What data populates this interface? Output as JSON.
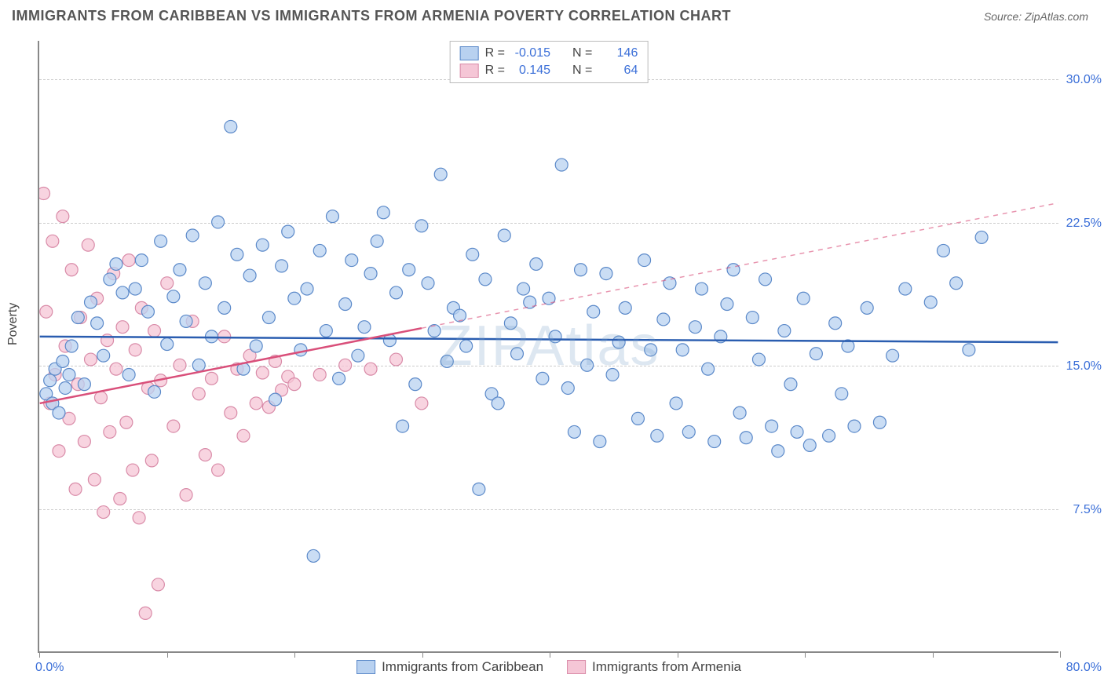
{
  "header": {
    "title": "IMMIGRANTS FROM CARIBBEAN VS IMMIGRANTS FROM ARMENIA POVERTY CORRELATION CHART",
    "source": "Source: ZipAtlas.com"
  },
  "chart": {
    "type": "scatter",
    "ylabel": "Poverty",
    "watermark": "ZIPAtlas",
    "xlim": [
      0,
      80
    ],
    "ylim": [
      0,
      32
    ],
    "x_tick_positions": [
      0,
      10,
      20,
      30,
      40,
      50,
      60,
      70,
      80
    ],
    "y_gridlines": [
      7.5,
      15.0,
      22.5,
      30.0
    ],
    "y_tick_labels": [
      "7.5%",
      "15.0%",
      "22.5%",
      "30.0%"
    ],
    "x_min_label": "0.0%",
    "x_max_label": "80.0%",
    "background_color": "#ffffff",
    "grid_color": "#cccccc",
    "axis_color": "#888888",
    "ytick_label_color": "#3b6fd8",
    "series": [
      {
        "name": "Immigrants from Caribbean",
        "marker_fill": "#b8d1f0",
        "marker_stroke": "#5b89c9",
        "marker_radius": 8,
        "line_color": "#2a5db0",
        "line_width": 2.5,
        "r_value": "-0.015",
        "n_value": "146",
        "trend": {
          "x1": 0,
          "y1": 16.5,
          "x2": 80,
          "y2": 16.2,
          "solid_until_x": 80
        },
        "points": [
          [
            0.5,
            13.5
          ],
          [
            0.8,
            14.2
          ],
          [
            1.0,
            13.0
          ],
          [
            1.2,
            14.8
          ],
          [
            1.5,
            12.5
          ],
          [
            1.8,
            15.2
          ],
          [
            2.0,
            13.8
          ],
          [
            2.3,
            14.5
          ],
          [
            2.5,
            16.0
          ],
          [
            3.0,
            17.5
          ],
          [
            3.5,
            14.0
          ],
          [
            4.0,
            18.3
          ],
          [
            4.5,
            17.2
          ],
          [
            5.0,
            15.5
          ],
          [
            5.5,
            19.5
          ],
          [
            6.0,
            20.3
          ],
          [
            6.5,
            18.8
          ],
          [
            7.0,
            14.5
          ],
          [
            7.5,
            19.0
          ],
          [
            8.0,
            20.5
          ],
          [
            8.5,
            17.8
          ],
          [
            9.0,
            13.6
          ],
          [
            9.5,
            21.5
          ],
          [
            10.0,
            16.1
          ],
          [
            10.5,
            18.6
          ],
          [
            11.0,
            20.0
          ],
          [
            11.5,
            17.3
          ],
          [
            12.0,
            21.8
          ],
          [
            12.5,
            15.0
          ],
          [
            13.0,
            19.3
          ],
          [
            13.5,
            16.5
          ],
          [
            14.0,
            22.5
          ],
          [
            14.5,
            18.0
          ],
          [
            15.0,
            27.5
          ],
          [
            15.5,
            20.8
          ],
          [
            16.0,
            14.8
          ],
          [
            16.5,
            19.7
          ],
          [
            17.0,
            16.0
          ],
          [
            17.5,
            21.3
          ],
          [
            18.0,
            17.5
          ],
          [
            18.5,
            13.2
          ],
          [
            19.0,
            20.2
          ],
          [
            19.5,
            22.0
          ],
          [
            20.0,
            18.5
          ],
          [
            20.5,
            15.8
          ],
          [
            21.0,
            19.0
          ],
          [
            21.5,
            5.0
          ],
          [
            22.0,
            21.0
          ],
          [
            22.5,
            16.8
          ],
          [
            23.0,
            22.8
          ],
          [
            23.5,
            14.3
          ],
          [
            24.0,
            18.2
          ],
          [
            24.5,
            20.5
          ],
          [
            25.0,
            15.5
          ],
          [
            25.5,
            17.0
          ],
          [
            26.0,
            19.8
          ],
          [
            26.5,
            21.5
          ],
          [
            27.0,
            23.0
          ],
          [
            27.5,
            16.3
          ],
          [
            28.0,
            18.8
          ],
          [
            28.5,
            11.8
          ],
          [
            29.0,
            20.0
          ],
          [
            29.5,
            14.0
          ],
          [
            30.0,
            22.3
          ],
          [
            30.5,
            19.3
          ],
          [
            31.0,
            16.8
          ],
          [
            31.5,
            25.0
          ],
          [
            32.0,
            15.2
          ],
          [
            32.5,
            18.0
          ],
          [
            33.0,
            17.6
          ],
          [
            33.5,
            16.0
          ],
          [
            34.0,
            20.8
          ],
          [
            34.5,
            8.5
          ],
          [
            35.0,
            19.5
          ],
          [
            35.5,
            13.5
          ],
          [
            36.0,
            13.0
          ],
          [
            36.5,
            21.8
          ],
          [
            37.0,
            17.2
          ],
          [
            37.5,
            15.6
          ],
          [
            38.0,
            19.0
          ],
          [
            38.5,
            18.3
          ],
          [
            39.0,
            20.3
          ],
          [
            39.5,
            14.3
          ],
          [
            40.0,
            18.5
          ],
          [
            40.5,
            16.5
          ],
          [
            41.0,
            25.5
          ],
          [
            41.5,
            13.8
          ],
          [
            42.0,
            11.5
          ],
          [
            42.5,
            20.0
          ],
          [
            43.0,
            15.0
          ],
          [
            43.5,
            17.8
          ],
          [
            44.0,
            11.0
          ],
          [
            44.5,
            19.8
          ],
          [
            45.0,
            14.5
          ],
          [
            45.5,
            16.2
          ],
          [
            46.0,
            18.0
          ],
          [
            47.0,
            12.2
          ],
          [
            47.5,
            20.5
          ],
          [
            48.0,
            15.8
          ],
          [
            48.5,
            11.3
          ],
          [
            49.0,
            17.4
          ],
          [
            49.5,
            19.3
          ],
          [
            50.0,
            13.0
          ],
          [
            50.5,
            15.8
          ],
          [
            51.0,
            11.5
          ],
          [
            51.5,
            17.0
          ],
          [
            52.0,
            19.0
          ],
          [
            52.5,
            14.8
          ],
          [
            53.0,
            11.0
          ],
          [
            53.5,
            16.5
          ],
          [
            54.0,
            18.2
          ],
          [
            54.5,
            20.0
          ],
          [
            55.0,
            12.5
          ],
          [
            55.5,
            11.2
          ],
          [
            56.0,
            17.5
          ],
          [
            56.5,
            15.3
          ],
          [
            57.0,
            19.5
          ],
          [
            57.5,
            11.8
          ],
          [
            58.0,
            10.5
          ],
          [
            58.5,
            16.8
          ],
          [
            59.0,
            14.0
          ],
          [
            59.5,
            11.5
          ],
          [
            60.0,
            18.5
          ],
          [
            60.5,
            10.8
          ],
          [
            61.0,
            15.6
          ],
          [
            62.0,
            11.3
          ],
          [
            62.5,
            17.2
          ],
          [
            63.0,
            13.5
          ],
          [
            63.5,
            16.0
          ],
          [
            64.0,
            11.8
          ],
          [
            65.0,
            18.0
          ],
          [
            66.0,
            12.0
          ],
          [
            67.0,
            15.5
          ],
          [
            68.0,
            19.0
          ],
          [
            70.0,
            18.3
          ],
          [
            71.0,
            21.0
          ],
          [
            72.0,
            19.3
          ],
          [
            74.0,
            21.7
          ],
          [
            73.0,
            15.8
          ]
        ]
      },
      {
        "name": "Immigrants from Armenia",
        "marker_fill": "#f5c6d6",
        "marker_stroke": "#d98ba8",
        "marker_radius": 8,
        "line_color": "#d94f7a",
        "line_width": 2.5,
        "r_value": "0.145",
        "n_value": "64",
        "trend": {
          "x1": 0,
          "y1": 13.0,
          "x2": 80,
          "y2": 23.5,
          "solid_until_x": 30
        },
        "points": [
          [
            0.3,
            24.0
          ],
          [
            0.5,
            17.8
          ],
          [
            0.8,
            13.0
          ],
          [
            1.0,
            21.5
          ],
          [
            1.2,
            14.5
          ],
          [
            1.5,
            10.5
          ],
          [
            1.8,
            22.8
          ],
          [
            2.0,
            16.0
          ],
          [
            2.3,
            12.2
          ],
          [
            2.5,
            20.0
          ],
          [
            2.8,
            8.5
          ],
          [
            3.0,
            14.0
          ],
          [
            3.2,
            17.5
          ],
          [
            3.5,
            11.0
          ],
          [
            3.8,
            21.3
          ],
          [
            4.0,
            15.3
          ],
          [
            4.3,
            9.0
          ],
          [
            4.5,
            18.5
          ],
          [
            4.8,
            13.3
          ],
          [
            5.0,
            7.3
          ],
          [
            5.3,
            16.3
          ],
          [
            5.5,
            11.5
          ],
          [
            5.8,
            19.8
          ],
          [
            6.0,
            14.8
          ],
          [
            6.3,
            8.0
          ],
          [
            6.5,
            17.0
          ],
          [
            6.8,
            12.0
          ],
          [
            7.0,
            20.5
          ],
          [
            7.3,
            9.5
          ],
          [
            7.5,
            15.8
          ],
          [
            7.8,
            7.0
          ],
          [
            8.0,
            18.0
          ],
          [
            8.3,
            2.0
          ],
          [
            8.5,
            13.8
          ],
          [
            8.8,
            10.0
          ],
          [
            9.0,
            16.8
          ],
          [
            9.3,
            3.5
          ],
          [
            9.5,
            14.2
          ],
          [
            10.0,
            19.3
          ],
          [
            10.5,
            11.8
          ],
          [
            11.0,
            15.0
          ],
          [
            11.5,
            8.2
          ],
          [
            12.0,
            17.3
          ],
          [
            12.5,
            13.5
          ],
          [
            13.0,
            10.3
          ],
          [
            13.5,
            14.3
          ],
          [
            14.0,
            9.5
          ],
          [
            14.5,
            16.5
          ],
          [
            15.0,
            12.5
          ],
          [
            15.5,
            14.8
          ],
          [
            16.0,
            11.3
          ],
          [
            16.5,
            15.5
          ],
          [
            17.0,
            13.0
          ],
          [
            17.5,
            14.6
          ],
          [
            18.0,
            12.8
          ],
          [
            18.5,
            15.2
          ],
          [
            19.0,
            13.7
          ],
          [
            19.5,
            14.4
          ],
          [
            20.0,
            14.0
          ],
          [
            22.0,
            14.5
          ],
          [
            24.0,
            15.0
          ],
          [
            26.0,
            14.8
          ],
          [
            28.0,
            15.3
          ],
          [
            30.0,
            13.0
          ]
        ]
      }
    ],
    "legend_top": {
      "r_label": "R =",
      "n_label": "N ="
    },
    "bottom_legend": [
      {
        "label": "Immigrants from Caribbean",
        "fill": "#b8d1f0",
        "stroke": "#5b89c9"
      },
      {
        "label": "Immigrants from Armenia",
        "fill": "#f5c6d6",
        "stroke": "#d98ba8"
      }
    ]
  }
}
